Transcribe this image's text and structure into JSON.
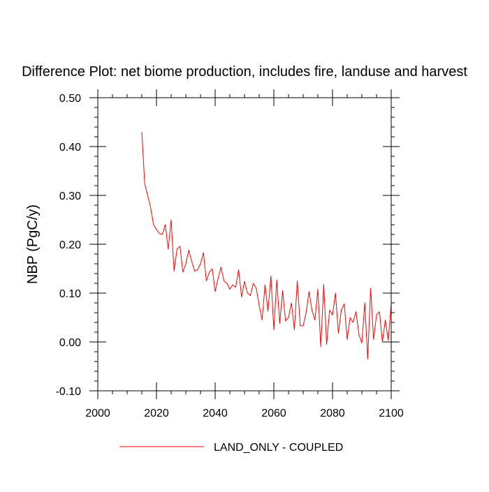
{
  "chart_data": {
    "type": "line",
    "title": "Difference Plot: net biome production, includes fire, landuse and harvest",
    "xlabel": "",
    "ylabel": "NBP  (PgC/y)",
    "xlim": [
      2000,
      2100
    ],
    "ylim": [
      -0.1,
      0.5
    ],
    "x_ticks": [
      2000,
      2020,
      2040,
      2060,
      2080,
      2100
    ],
    "x_tick_labels": [
      "2000",
      "2020",
      "2040",
      "2060",
      "2080",
      "2100"
    ],
    "y_ticks": [
      -0.1,
      0.0,
      0.1,
      0.2,
      0.3,
      0.4,
      0.5
    ],
    "y_tick_labels": [
      "-0.10",
      "0.00",
      "0.10",
      "0.20",
      "0.30",
      "0.40",
      "0.50"
    ],
    "grid": false,
    "legend_position": "bottom-center",
    "series": [
      {
        "name": "LAND_ONLY - COUPLED",
        "color": "#ff0000",
        "x": [
          2015,
          2016,
          2017,
          2018,
          2019,
          2020,
          2021,
          2022,
          2023,
          2024,
          2025,
          2026,
          2027,
          2028,
          2029,
          2030,
          2031,
          2032,
          2033,
          2034,
          2035,
          2036,
          2037,
          2038,
          2039,
          2040,
          2041,
          2042,
          2043,
          2044,
          2045,
          2046,
          2047,
          2048,
          2049,
          2050,
          2051,
          2052,
          2053,
          2054,
          2055,
          2056,
          2057,
          2058,
          2059,
          2060,
          2061,
          2062,
          2063,
          2064,
          2065,
          2066,
          2067,
          2068,
          2069,
          2070,
          2071,
          2072,
          2073,
          2074,
          2075,
          2076,
          2077,
          2078,
          2079,
          2080,
          2081,
          2082,
          2083,
          2084,
          2085,
          2086,
          2087,
          2088,
          2089,
          2090,
          2091,
          2092,
          2093,
          2094,
          2095,
          2096,
          2097,
          2098,
          2099,
          2100
        ],
        "y": [
          0.43,
          0.323,
          0.3,
          0.275,
          0.24,
          0.23,
          0.222,
          0.22,
          0.24,
          0.19,
          0.25,
          0.145,
          0.19,
          0.196,
          0.143,
          0.16,
          0.188,
          0.165,
          0.145,
          0.148,
          0.16,
          0.183,
          0.125,
          0.142,
          0.15,
          0.103,
          0.13,
          0.153,
          0.125,
          0.12,
          0.108,
          0.117,
          0.112,
          0.148,
          0.092,
          0.124,
          0.1,
          0.095,
          0.12,
          0.11,
          0.075,
          0.045,
          0.117,
          0.063,
          0.135,
          0.025,
          0.127,
          0.038,
          0.105,
          0.043,
          0.05,
          0.08,
          0.025,
          0.125,
          0.033,
          0.033,
          0.06,
          0.103,
          0.065,
          0.045,
          0.108,
          -0.01,
          0.118,
          -0.005,
          0.065,
          0.055,
          0.1,
          0.018,
          0.065,
          0.078,
          0.005,
          0.05,
          0.04,
          0.062,
          0.015,
          -0.002,
          0.08,
          -0.035,
          0.11,
          0.005,
          0.055,
          0.062,
          0.0,
          0.045,
          0.003,
          0.078
        ]
      }
    ]
  }
}
